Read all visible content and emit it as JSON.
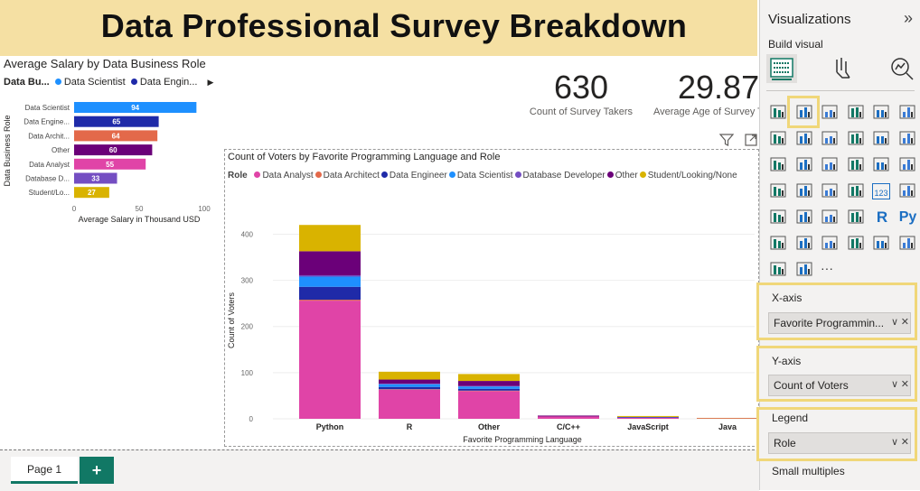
{
  "report": {
    "title": "Data Professional Survey Breakdown"
  },
  "salary_chart": {
    "title": "Average Salary by Data Business Role",
    "legend_title": "Data Bu...",
    "legend_items": [
      "Data Scientist",
      "Data Engin..."
    ],
    "legend_colors": [
      "#1e90ff",
      "#1f2aa8"
    ],
    "ylabel": "Data Business Role",
    "xlabel": "Average Salary in Thousand USD",
    "ticks": [
      "0",
      "50",
      "100"
    ]
  },
  "kpis": [
    {
      "value": "630",
      "label": "Count of Survey Takers"
    },
    {
      "value": "29.87",
      "label": "Average Age of Survey T"
    }
  ],
  "language_chart": {
    "title": "Count of Voters by Favorite Programming Language and Role",
    "legend_title": "Role",
    "ylabel": "Count of Voters",
    "xlabel": "Favorite Programming Language",
    "yticks": [
      "0",
      "100",
      "200",
      "300",
      "400"
    ]
  },
  "chart_data": [
    {
      "type": "bar",
      "orientation": "horizontal",
      "title": "Average Salary by Data Business Role",
      "categories": [
        "Data Scientist",
        "Data Engine...",
        "Data Archit...",
        "Other",
        "Data Analyst",
        "Database D...",
        "Student/Lo..."
      ],
      "values": [
        94,
        65,
        64,
        60,
        55,
        33,
        27
      ],
      "colors": [
        "#1e90ff",
        "#1f2aa8",
        "#e3694a",
        "#6b0079",
        "#e044a7",
        "#744ec2",
        "#d9b300"
      ],
      "xlabel": "Average Salary in Thousand USD",
      "ylabel": "Data Business Role",
      "xlim": [
        0,
        100
      ]
    },
    {
      "type": "bar",
      "stacked": true,
      "title": "Count of Voters by Favorite Programming Language and Role",
      "categories": [
        "Python",
        "R",
        "Other",
        "C/C++",
        "JavaScript",
        "Java"
      ],
      "series": [
        {
          "name": "Data Analyst",
          "color": "#e044a7",
          "values": [
            256,
            63,
            60,
            5,
            2,
            1
          ]
        },
        {
          "name": "Data Architect",
          "color": "#e3694a",
          "values": [
            2,
            1,
            1,
            0,
            0,
            0
          ]
        },
        {
          "name": "Data Engineer",
          "color": "#1f2aa8",
          "values": [
            28,
            5,
            4,
            0,
            0,
            0
          ]
        },
        {
          "name": "Data Scientist",
          "color": "#1e90ff",
          "values": [
            22,
            6,
            5,
            0,
            1,
            0
          ]
        },
        {
          "name": "Database Developer",
          "color": "#744ec2",
          "values": [
            3,
            1,
            1,
            0,
            0,
            0
          ]
        },
        {
          "name": "Other",
          "color": "#6b0079",
          "values": [
            52,
            9,
            11,
            2,
            1,
            0
          ]
        },
        {
          "name": "Student/Looking/None",
          "color": "#d9b300",
          "values": [
            57,
            17,
            15,
            0,
            2,
            1
          ]
        }
      ],
      "xlabel": "Favorite Programming Language",
      "ylabel": "Count of Voters",
      "ylim": [
        0,
        440
      ]
    }
  ],
  "visual_header": {
    "filter_icon": "filter-icon",
    "focus_icon": "focus-mode-icon"
  },
  "pages": {
    "tabs": [
      "Page 1"
    ],
    "add_label": "+"
  },
  "pane": {
    "title": "Visualizations",
    "build_label": "Build visual",
    "collapse_glyph": "»",
    "more_glyph": "···",
    "wells": [
      {
        "label": "X-axis",
        "field": "Favorite Programmin..."
      },
      {
        "label": "Y-axis",
        "field": "Count of Voters"
      },
      {
        "label": "Legend",
        "field": "Role"
      }
    ],
    "small_multiples": "Small multiples"
  }
}
